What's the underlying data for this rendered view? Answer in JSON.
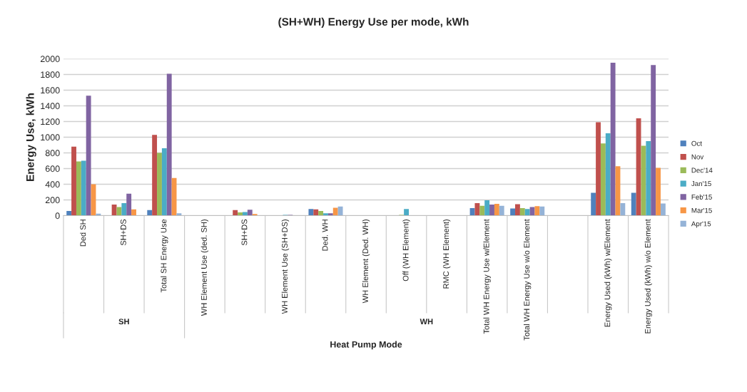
{
  "chart_data": {
    "type": "bar",
    "title": "(SH+WH) Energy Use per mode, kWh",
    "xlabel": "Heat Pump Mode",
    "ylabel": "Energy Use, kWh",
    "categories": [
      "Ded SH",
      "SH+DS",
      "Total SH Energy Use",
      "WH Element Use (ded. SH)",
      "SH+DS",
      "WH Element Use (SH+DS)",
      "Ded. WH",
      "WH Element (Ded. WH)",
      "Off (WH Element)",
      "RMC (WH Element)",
      "Total WH Energy Use w/Element",
      "Total WH Energy Use w/o Element",
      null,
      "Energy Used (kWh) w/Element",
      "Energy Used (kWh) w/o Element"
    ],
    "series": [
      {
        "name": "Oct",
        "color": "#4f81bd",
        "values": [
          60,
          0,
          70,
          0,
          0,
          0,
          85,
          0,
          0,
          0,
          95,
          90,
          null,
          290,
          290
        ]
      },
      {
        "name": "Nov",
        "color": "#c0504d",
        "values": [
          880,
          140,
          1030,
          0,
          70,
          0,
          80,
          0,
          0,
          0,
          160,
          145,
          null,
          1190,
          1240
        ]
      },
      {
        "name": "Dec'14",
        "color": "#9bbb59",
        "values": [
          690,
          110,
          800,
          0,
          40,
          0,
          60,
          0,
          10,
          0,
          125,
          95,
          null,
          920,
          890
        ]
      },
      {
        "name": "Jan'15",
        "color": "#4bacc6",
        "values": [
          700,
          160,
          860,
          0,
          45,
          10,
          30,
          0,
          85,
          0,
          195,
          85,
          null,
          1050,
          950
        ]
      },
      {
        "name": "Feb'15",
        "color": "#8064a2",
        "values": [
          1530,
          280,
          1810,
          0,
          75,
          10,
          30,
          0,
          0,
          0,
          140,
          110,
          null,
          1950,
          1920
        ]
      },
      {
        "name": "Mar'15",
        "color": "#f79646",
        "values": [
          400,
          80,
          480,
          0,
          20,
          0,
          100,
          0,
          0,
          0,
          150,
          120,
          null,
          630,
          610
        ]
      },
      {
        "name": "Apr'15",
        "color": "#95b3d7",
        "values": [
          25,
          0,
          30,
          0,
          0,
          0,
          115,
          0,
          0,
          0,
          125,
          115,
          null,
          160,
          155
        ]
      }
    ],
    "annotations": [
      "SH",
      "WH"
    ],
    "ylim": [
      0,
      2000
    ],
    "yticks": [
      0,
      200,
      400,
      600,
      800,
      1000,
      1200,
      1400,
      1600,
      1800,
      2000
    ],
    "grid": "y",
    "legend": "right"
  }
}
